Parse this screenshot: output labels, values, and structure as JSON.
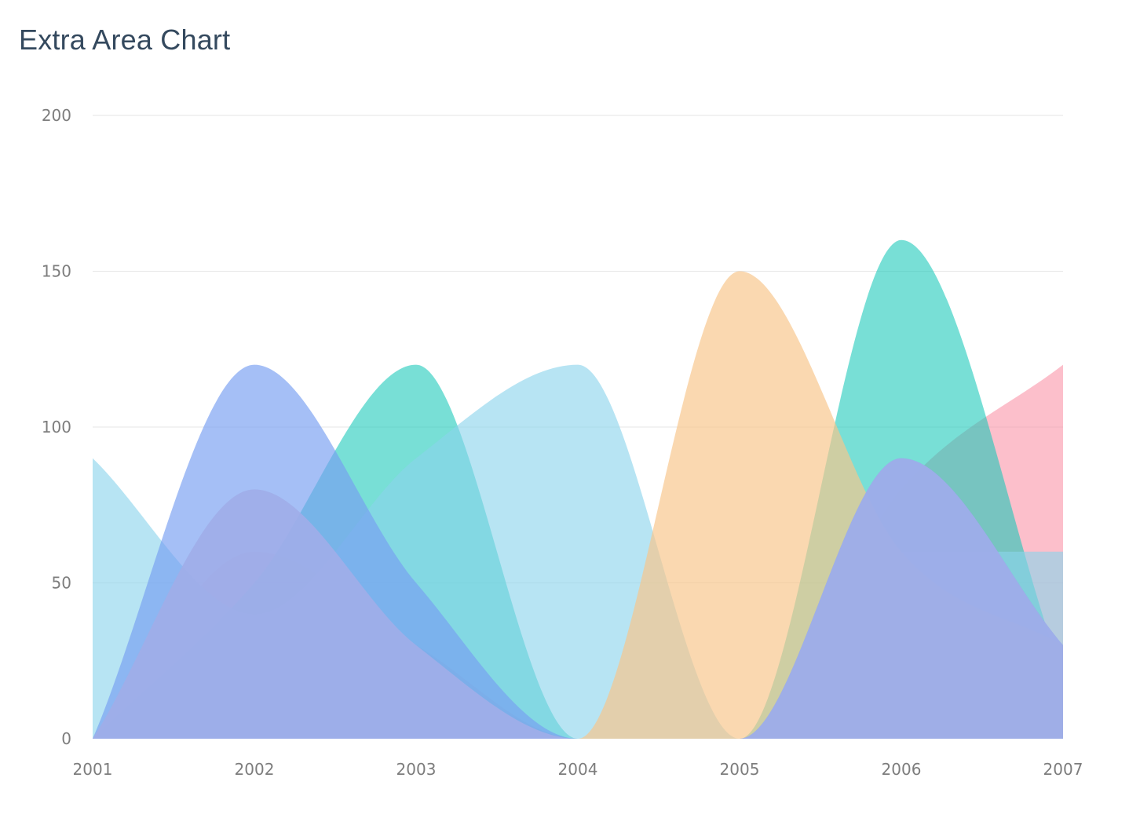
{
  "chart_data": {
    "type": "area",
    "title": "Extra Area Chart",
    "xlabel": "",
    "ylabel": "",
    "categories": [
      "2001",
      "2002",
      "2003",
      "2004",
      "2005",
      "2006",
      "2007"
    ],
    "ylim": [
      0,
      200
    ],
    "yticks": [
      0,
      50,
      100,
      150,
      200
    ],
    "grid": true,
    "legend": "none",
    "series": [
      {
        "color": "#fa8ba0",
        "opacity": 0.55,
        "values": [
          0,
          60,
          30,
          0,
          0,
          80,
          120
        ]
      },
      {
        "color": "#16c8b8",
        "opacity": 0.58,
        "values": [
          0,
          50,
          120,
          0,
          0,
          160,
          20
        ]
      },
      {
        "color": "#8ad4ec",
        "opacity": 0.62,
        "values": [
          90,
          40,
          90,
          120,
          0,
          60,
          60
        ]
      },
      {
        "color": "#f8c58b",
        "opacity": 0.68,
        "values": [
          0,
          0,
          0,
          0,
          150,
          60,
          30
        ]
      },
      {
        "color": "#779ef2",
        "opacity": 0.66,
        "values": [
          0,
          120,
          50,
          0,
          0,
          90,
          30
        ]
      },
      {
        "color": "#a0aee8",
        "opacity": 0.92,
        "values": [
          0,
          80,
          30,
          0,
          0,
          90,
          30
        ]
      }
    ]
  }
}
